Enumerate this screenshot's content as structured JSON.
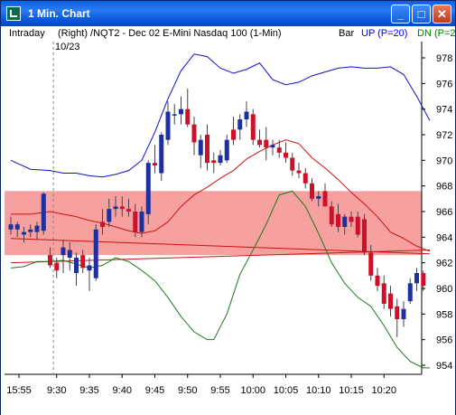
{
  "window": {
    "title": "1 Min. Chart",
    "buttons": {
      "minimize": "_",
      "maximize": "□",
      "close": "✕"
    }
  },
  "header": {
    "intraday": "Intraday",
    "instrument": "(Right) /NQT2 - Dec 02  E-Mini Nasdaq 100  (1-Min)",
    "date_label": "10/23",
    "bar_label": "Bar",
    "up_label": "UP (P=20)",
    "dn_label": "DN (P=2"
  },
  "colors": {
    "up_candle": "#1e2fa0",
    "down_candle": "#d0102a",
    "upper_band": "#1010cc",
    "lower_band": "#1a7a1a",
    "mid_line": "#d01010",
    "highlight_zone": "#f7a0a0",
    "up_label": "#0000ff",
    "dn_label": "#008000"
  },
  "chart_data": {
    "type": "candlestick",
    "y_ticks": [
      954,
      956,
      958,
      960,
      962,
      964,
      966,
      968,
      970,
      972,
      974,
      976,
      978
    ],
    "ylim": [
      953.2,
      979.2
    ],
    "x_ticks": [
      "15:55",
      "9:30",
      "9:35",
      "9:40",
      "9:45",
      "9:50",
      "9:55",
      "10:00",
      "10:05",
      "10:10",
      "10:15",
      "10:20"
    ],
    "highlight_zone": [
      962.6,
      967.6
    ],
    "bars": [
      {
        "x": 0,
        "o": 965.0,
        "h": 965.6,
        "l": 964.2,
        "c": 964.6,
        "dir": "up"
      },
      {
        "x": 1,
        "o": 964.6,
        "h": 965.2,
        "l": 964.0,
        "c": 965.0,
        "dir": "up"
      },
      {
        "x": 2,
        "o": 964.2,
        "h": 964.8,
        "l": 963.6,
        "c": 964.4,
        "dir": "up"
      },
      {
        "x": 3,
        "o": 964.4,
        "h": 965.0,
        "l": 964.0,
        "c": 964.6,
        "dir": "up"
      },
      {
        "x": 4,
        "o": 964.4,
        "h": 965.2,
        "l": 963.8,
        "c": 964.9,
        "dir": "up"
      },
      {
        "x": 5,
        "o": 964.5,
        "h": 967.5,
        "l": 964.2,
        "c": 967.4,
        "dir": "up"
      },
      {
        "x": 6,
        "o": 962.6,
        "h": 963.2,
        "l": 961.6,
        "c": 961.8,
        "dir": "down"
      },
      {
        "x": 7,
        "o": 962.0,
        "h": 962.4,
        "l": 960.8,
        "c": 961.4,
        "dir": "down"
      },
      {
        "x": 8,
        "o": 962.6,
        "h": 963.8,
        "l": 961.2,
        "c": 963.2,
        "dir": "up"
      },
      {
        "x": 9,
        "o": 962.4,
        "h": 963.6,
        "l": 961.4,
        "c": 963.0,
        "dir": "up"
      },
      {
        "x": 10,
        "o": 961.2,
        "h": 962.8,
        "l": 960.2,
        "c": 962.4,
        "dir": "up"
      },
      {
        "x": 11,
        "o": 962.6,
        "h": 963.0,
        "l": 961.2,
        "c": 961.6,
        "dir": "down"
      },
      {
        "x": 12,
        "o": 961.4,
        "h": 962.4,
        "l": 959.8,
        "c": 961.8,
        "dir": "up"
      },
      {
        "x": 13,
        "o": 960.8,
        "h": 965.0,
        "l": 960.6,
        "c": 964.6,
        "dir": "up"
      },
      {
        "x": 14,
        "o": 964.8,
        "h": 966.2,
        "l": 964.2,
        "c": 965.2,
        "dir": "down"
      },
      {
        "x": 15,
        "o": 965.2,
        "h": 967.0,
        "l": 964.8,
        "c": 966.2,
        "dir": "up"
      },
      {
        "x": 16,
        "o": 966.2,
        "h": 967.2,
        "l": 965.6,
        "c": 966.4,
        "dir": "up"
      },
      {
        "x": 17,
        "o": 966.4,
        "h": 967.2,
        "l": 965.6,
        "c": 966.2,
        "dir": "down"
      },
      {
        "x": 18,
        "o": 966.2,
        "h": 967.0,
        "l": 965.6,
        "c": 966.0,
        "dir": "down"
      },
      {
        "x": 19,
        "o": 966.0,
        "h": 966.6,
        "l": 964.0,
        "c": 964.4,
        "dir": "down"
      },
      {
        "x": 20,
        "o": 964.4,
        "h": 966.4,
        "l": 964.0,
        "c": 966.0,
        "dir": "up"
      },
      {
        "x": 21,
        "o": 965.8,
        "h": 970.0,
        "l": 965.0,
        "c": 969.8,
        "dir": "up"
      },
      {
        "x": 22,
        "o": 969.8,
        "h": 971.2,
        "l": 969.0,
        "c": 969.6,
        "dir": "down"
      },
      {
        "x": 23,
        "o": 969.0,
        "h": 972.2,
        "l": 968.4,
        "c": 972.0,
        "dir": "up"
      },
      {
        "x": 24,
        "o": 971.6,
        "h": 974.6,
        "l": 971.2,
        "c": 973.8,
        "dir": "up"
      },
      {
        "x": 25,
        "o": 973.6,
        "h": 974.4,
        "l": 972.8,
        "c": 973.6,
        "dir": "up"
      },
      {
        "x": 26,
        "o": 973.6,
        "h": 975.0,
        "l": 972.8,
        "c": 974.0,
        "dir": "up"
      },
      {
        "x": 27,
        "o": 974.0,
        "h": 975.6,
        "l": 972.6,
        "c": 972.8,
        "dir": "down"
      },
      {
        "x": 28,
        "o": 972.8,
        "h": 973.4,
        "l": 970.4,
        "c": 971.4,
        "dir": "down"
      },
      {
        "x": 29,
        "o": 970.4,
        "h": 972.0,
        "l": 969.4,
        "c": 971.6,
        "dir": "up"
      },
      {
        "x": 30,
        "o": 972.0,
        "h": 972.8,
        "l": 969.2,
        "c": 969.8,
        "dir": "down"
      },
      {
        "x": 31,
        "o": 970.0,
        "h": 970.6,
        "l": 969.0,
        "c": 969.8,
        "dir": "down"
      },
      {
        "x": 32,
        "o": 969.8,
        "h": 970.8,
        "l": 969.6,
        "c": 970.4,
        "dir": "up"
      },
      {
        "x": 33,
        "o": 970.0,
        "h": 972.0,
        "l": 969.8,
        "c": 971.6,
        "dir": "up"
      },
      {
        "x": 34,
        "o": 971.6,
        "h": 973.4,
        "l": 971.2,
        "c": 972.4,
        "dir": "down"
      },
      {
        "x": 35,
        "o": 972.4,
        "h": 973.6,
        "l": 971.6,
        "c": 973.2,
        "dir": "up"
      },
      {
        "x": 36,
        "o": 973.2,
        "h": 974.6,
        "l": 972.6,
        "c": 973.8,
        "dir": "up"
      },
      {
        "x": 37,
        "o": 973.6,
        "h": 974.0,
        "l": 971.2,
        "c": 971.6,
        "dir": "down"
      },
      {
        "x": 38,
        "o": 971.6,
        "h": 972.4,
        "l": 971.0,
        "c": 971.2,
        "dir": "down"
      },
      {
        "x": 39,
        "o": 971.6,
        "h": 972.6,
        "l": 970.0,
        "c": 971.0,
        "dir": "down"
      },
      {
        "x": 40,
        "o": 971.0,
        "h": 971.6,
        "l": 970.4,
        "c": 971.2,
        "dir": "up"
      },
      {
        "x": 41,
        "o": 971.0,
        "h": 971.6,
        "l": 970.2,
        "c": 970.6,
        "dir": "down"
      },
      {
        "x": 42,
        "o": 970.6,
        "h": 971.4,
        "l": 969.8,
        "c": 970.2,
        "dir": "down"
      },
      {
        "x": 43,
        "o": 970.2,
        "h": 970.6,
        "l": 968.8,
        "c": 969.2,
        "dir": "down"
      },
      {
        "x": 44,
        "o": 969.2,
        "h": 969.8,
        "l": 968.6,
        "c": 969.0,
        "dir": "down"
      },
      {
        "x": 45,
        "o": 969.0,
        "h": 969.4,
        "l": 967.8,
        "c": 968.2,
        "dir": "down"
      },
      {
        "x": 46,
        "o": 968.2,
        "h": 968.6,
        "l": 966.8,
        "c": 967.0,
        "dir": "down"
      },
      {
        "x": 47,
        "o": 967.0,
        "h": 967.6,
        "l": 966.4,
        "c": 967.2,
        "dir": "up"
      },
      {
        "x": 48,
        "o": 967.6,
        "h": 968.2,
        "l": 966.6,
        "c": 966.4,
        "dir": "down"
      },
      {
        "x": 49,
        "o": 966.4,
        "h": 966.8,
        "l": 964.8,
        "c": 965.0,
        "dir": "down"
      },
      {
        "x": 50,
        "o": 965.8,
        "h": 966.6,
        "l": 964.4,
        "c": 964.8,
        "dir": "down"
      },
      {
        "x": 51,
        "o": 964.8,
        "h": 965.8,
        "l": 964.2,
        "c": 965.6,
        "dir": "up"
      },
      {
        "x": 52,
        "o": 965.6,
        "h": 966.0,
        "l": 964.8,
        "c": 965.2,
        "dir": "down"
      },
      {
        "x": 53,
        "o": 965.6,
        "h": 966.0,
        "l": 964.0,
        "c": 964.2,
        "dir": "down"
      },
      {
        "x": 54,
        "o": 965.4,
        "h": 965.8,
        "l": 962.6,
        "c": 962.8,
        "dir": "down"
      },
      {
        "x": 55,
        "o": 962.8,
        "h": 963.4,
        "l": 960.6,
        "c": 961.0,
        "dir": "down"
      },
      {
        "x": 56,
        "o": 961.0,
        "h": 961.6,
        "l": 959.8,
        "c": 960.2,
        "dir": "down"
      },
      {
        "x": 57,
        "o": 960.4,
        "h": 961.0,
        "l": 958.4,
        "c": 958.8,
        "dir": "down"
      },
      {
        "x": 58,
        "o": 959.6,
        "h": 960.2,
        "l": 957.8,
        "c": 958.4,
        "dir": "down"
      },
      {
        "x": 59,
        "o": 958.6,
        "h": 959.2,
        "l": 956.2,
        "c": 957.6,
        "dir": "down"
      },
      {
        "x": 60,
        "o": 957.6,
        "h": 959.0,
        "l": 957.0,
        "c": 958.4,
        "dir": "up"
      },
      {
        "x": 61,
        "o": 959.0,
        "h": 960.8,
        "l": 958.8,
        "c": 960.4,
        "dir": "up"
      },
      {
        "x": 62,
        "o": 960.4,
        "h": 961.6,
        "l": 959.8,
        "c": 961.2,
        "dir": "up"
      },
      {
        "x": 63,
        "o": 961.2,
        "h": 961.4,
        "l": 959.8,
        "c": 960.2,
        "dir": "down"
      }
    ],
    "upper_band": [
      [
        0,
        970.0
      ],
      [
        3,
        969.3
      ],
      [
        6,
        969.2
      ],
      [
        8,
        969.0
      ],
      [
        10,
        969.0
      ],
      [
        12,
        968.8
      ],
      [
        14,
        968.7
      ],
      [
        16,
        968.9
      ],
      [
        18,
        969.2
      ],
      [
        20,
        970.0
      ],
      [
        22,
        972.2
      ],
      [
        24,
        974.8
      ],
      [
        26,
        977.0
      ],
      [
        28,
        978.3
      ],
      [
        30,
        978.1
      ],
      [
        32,
        977.2
      ],
      [
        34,
        976.8
      ],
      [
        36,
        977.1
      ],
      [
        38,
        977.6
      ],
      [
        40,
        976.3
      ],
      [
        42,
        975.9
      ],
      [
        44,
        976.1
      ],
      [
        46,
        976.6
      ],
      [
        48,
        976.9
      ],
      [
        50,
        977.2
      ],
      [
        52,
        977.3
      ],
      [
        54,
        977.2
      ],
      [
        56,
        977.2
      ],
      [
        58,
        977.3
      ],
      [
        60,
        976.7
      ],
      [
        62,
        975.0
      ],
      [
        64,
        973.1
      ]
    ],
    "lower_band": [
      [
        0,
        961.6
      ],
      [
        2,
        961.7
      ],
      [
        4,
        962.1
      ],
      [
        6,
        962.1
      ],
      [
        8,
        962.2
      ],
      [
        10,
        961.9
      ],
      [
        12,
        961.6
      ],
      [
        14,
        961.8
      ],
      [
        16,
        962.4
      ],
      [
        18,
        962.1
      ],
      [
        20,
        961.4
      ],
      [
        22,
        960.6
      ],
      [
        24,
        959.3
      ],
      [
        26,
        957.8
      ],
      [
        28,
        956.6
      ],
      [
        30,
        956.0
      ],
      [
        31,
        956.0
      ],
      [
        33,
        958.0
      ],
      [
        35,
        961.1
      ],
      [
        37,
        963.0
      ],
      [
        39,
        965.0
      ],
      [
        41,
        967.3
      ],
      [
        43,
        967.6
      ],
      [
        45,
        966.4
      ],
      [
        47,
        964.3
      ],
      [
        49,
        962.0
      ],
      [
        51,
        960.4
      ],
      [
        53,
        959.3
      ],
      [
        55,
        958.6
      ],
      [
        57,
        957.1
      ],
      [
        59,
        955.4
      ],
      [
        61,
        954.3
      ],
      [
        63,
        953.8
      ],
      [
        64,
        953.8
      ]
    ],
    "mid_line": [
      [
        0,
        965.8
      ],
      [
        3,
        965.8
      ],
      [
        6,
        966.0
      ],
      [
        8,
        965.8
      ],
      [
        10,
        965.6
      ],
      [
        12,
        965.3
      ],
      [
        14,
        965.1
      ],
      [
        16,
        964.8
      ],
      [
        18,
        964.5
      ],
      [
        20,
        964.3
      ],
      [
        22,
        964.5
      ],
      [
        24,
        965.2
      ],
      [
        26,
        966.4
      ],
      [
        28,
        967.3
      ],
      [
        30,
        967.9
      ],
      [
        32,
        968.6
      ],
      [
        34,
        969.2
      ],
      [
        36,
        970.1
      ],
      [
        38,
        970.7
      ],
      [
        40,
        971.2
      ],
      [
        42,
        971.6
      ],
      [
        44,
        971.3
      ],
      [
        46,
        970.2
      ],
      [
        48,
        969.4
      ],
      [
        50,
        968.5
      ],
      [
        52,
        967.5
      ],
      [
        54,
        966.6
      ],
      [
        56,
        965.6
      ],
      [
        58,
        964.4
      ],
      [
        60,
        963.9
      ],
      [
        62,
        963.3
      ],
      [
        64,
        962.9
      ]
    ],
    "trend_lines": [
      {
        "from": [
          0,
          962.0
        ],
        "to": [
          64,
          963.0
        ]
      },
      {
        "from": [
          0,
          963.9
        ],
        "to": [
          64,
          962.7
        ]
      }
    ]
  }
}
